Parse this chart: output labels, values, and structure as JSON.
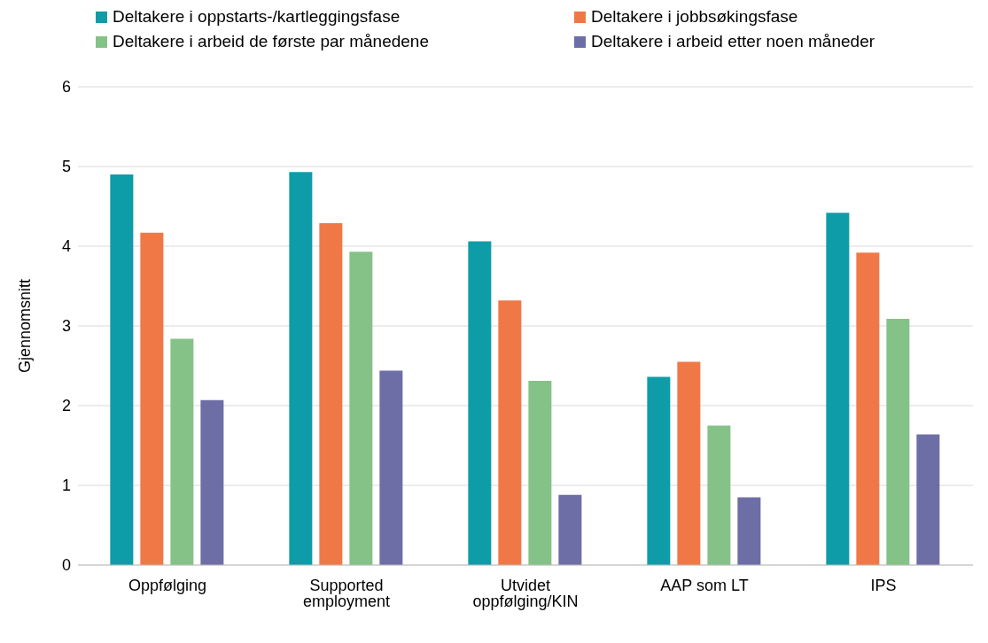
{
  "chart_data": {
    "type": "bar",
    "ylabel": "Gjennomsnitt",
    "categories": [
      "Oppfølging",
      "Supported employment",
      "Utvidet oppfølging/KIN",
      "AAP som LT",
      "IPS"
    ],
    "series": [
      {
        "name": "Deltakere i oppstarts-/kartleggingsfase",
        "color": "#0e9ca8",
        "values": [
          4.9,
          4.93,
          4.06,
          2.36,
          4.42
        ]
      },
      {
        "name": "Deltakere i jobbsøkingsfase",
        "color": "#f07846",
        "values": [
          4.17,
          4.29,
          3.32,
          2.55,
          3.92
        ]
      },
      {
        "name": "Deltakere i arbeid de første par månedene",
        "color": "#85c287",
        "values": [
          2.84,
          3.93,
          2.31,
          1.75,
          3.09
        ]
      },
      {
        "name": "Deltakere i arbeid etter noen måneder",
        "color": "#6d6ea6",
        "values": [
          2.07,
          2.44,
          0.88,
          0.85,
          1.64
        ]
      }
    ],
    "ylim": [
      0,
      6
    ],
    "yticks": [
      0,
      1,
      2,
      3,
      4,
      5,
      6
    ],
    "grid": "y",
    "legend": "top"
  }
}
